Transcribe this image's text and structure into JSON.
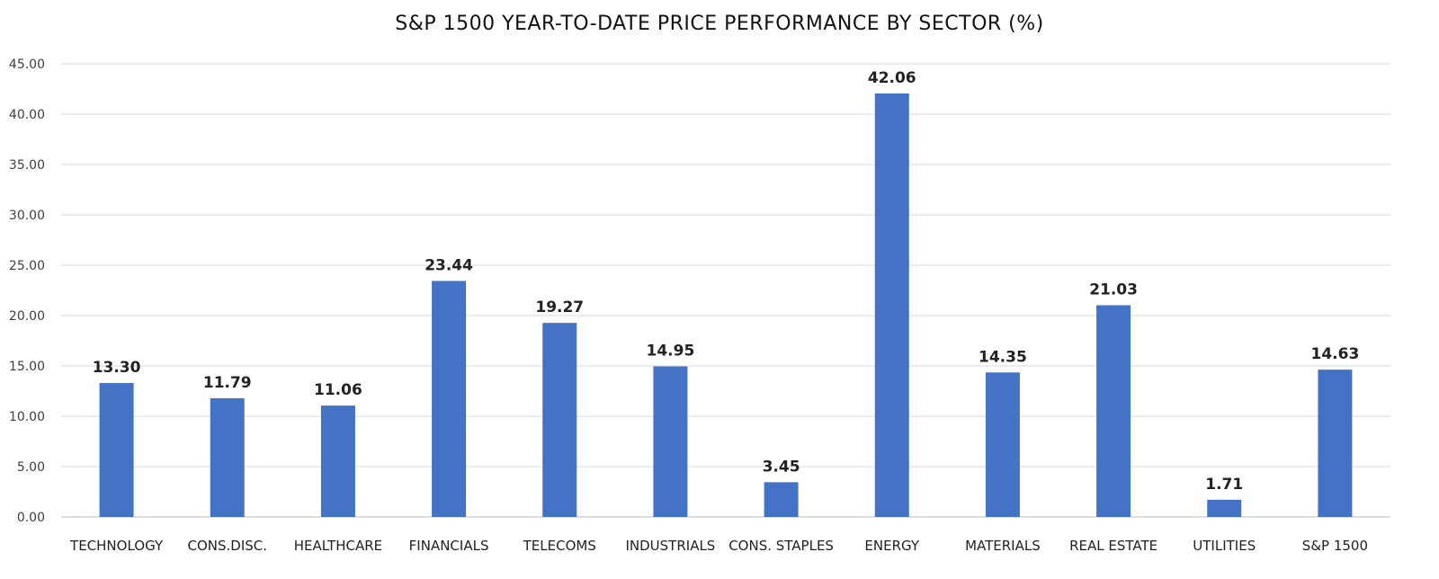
{
  "chart_data": {
    "type": "bar",
    "title": "S&P 1500 YEAR-TO-DATE PRICE PERFORMANCE BY SECTOR (%)",
    "xlabel": "",
    "ylabel": "",
    "categories": [
      "TECHNOLOGY",
      "CONS.DISC.",
      "HEALTHCARE",
      "FINANCIALS",
      "TELECOMS",
      "INDUSTRIALS",
      "CONS. STAPLES",
      "ENERGY",
      "MATERIALS",
      "REAL ESTATE",
      "UTILITIES",
      "S&P 1500"
    ],
    "values": [
      13.3,
      11.79,
      11.06,
      23.44,
      19.27,
      14.95,
      3.45,
      42.06,
      14.35,
      21.03,
      1.71,
      14.63
    ],
    "data_labels": [
      "13.30",
      "11.79",
      "11.06",
      "23.44",
      "19.27",
      "14.95",
      "3.45",
      "42.06",
      "14.35",
      "21.03",
      "1.71",
      "14.63"
    ],
    "ylim": [
      0,
      45
    ],
    "yticks": [
      0,
      5,
      10,
      15,
      20,
      25,
      30,
      35,
      40,
      45
    ],
    "ytick_labels": [
      "0.00",
      "5.00",
      "10.00",
      "15.00",
      "20.00",
      "25.00",
      "30.00",
      "35.00",
      "40.00",
      "45.00"
    ],
    "grid": true,
    "legend": "none",
    "bar_color": "#4472c4"
  }
}
